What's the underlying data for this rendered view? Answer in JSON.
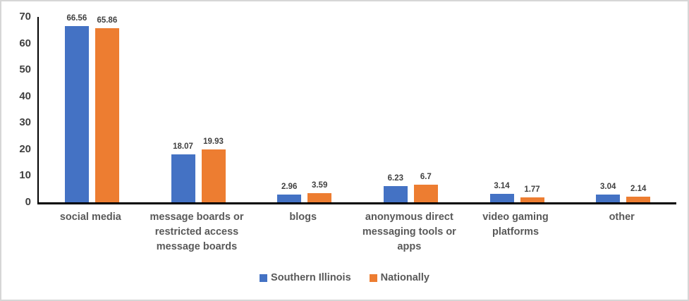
{
  "chart_data": {
    "type": "bar",
    "title": "",
    "xlabel": "",
    "ylabel": "",
    "categories": [
      "social media",
      "message boards or restricted access message boards",
      "blogs",
      "anonymous direct messaging tools or apps",
      "video gaming platforms",
      "other"
    ],
    "series": [
      {
        "name": "Southern Illinois",
        "color": "#4472C4",
        "values": [
          66.56,
          18.07,
          2.96,
          6.23,
          3.14,
          3.04
        ],
        "labels": [
          "66.56",
          "18.07",
          "2.96",
          "6.23",
          "3.14",
          "3.04"
        ]
      },
      {
        "name": "Nationally",
        "color": "#ED7D31",
        "values": [
          65.86,
          19.93,
          3.59,
          6.7,
          1.77,
          2.14
        ],
        "labels": [
          "65.86",
          "19.93",
          "3.59",
          "6.7",
          "1.77",
          "2.14"
        ]
      }
    ],
    "ylim": [
      0,
      70
    ],
    "yticks": [
      0,
      10,
      20,
      30,
      40,
      50,
      60,
      70
    ],
    "grid": false,
    "legend_position": "bottom"
  },
  "colors": {
    "axis_line": "#000000",
    "y_tick_label": "#404040",
    "category_label": "#595959",
    "value_label": "#404040",
    "figure_border": "#D6D6D6",
    "background": "#FFFFFF"
  }
}
